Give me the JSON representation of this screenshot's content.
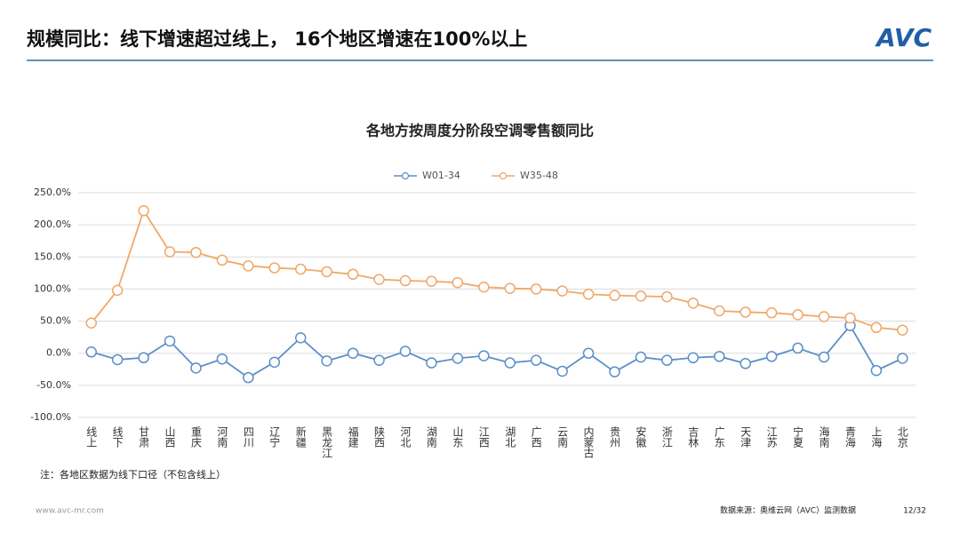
{
  "header": {
    "title": "规模同比：线下增速超过线上， 16个地区增速在100%以上",
    "logo": "AVC"
  },
  "chart_data": {
    "type": "line",
    "title": "各地方按周度分阶段空调零售额同比",
    "categories": [
      "线上",
      "线下",
      "甘肃",
      "山西",
      "重庆",
      "河南",
      "四川",
      "辽宁",
      "新疆",
      "黑龙江",
      "福建",
      "陕西",
      "河北",
      "湖南",
      "山东",
      "江西",
      "湖北",
      "广西",
      "云南",
      "内蒙古",
      "贵州",
      "安徽",
      "浙江",
      "吉林",
      "广东",
      "天津",
      "江苏",
      "宁夏",
      "海南",
      "青海",
      "上海",
      "北京"
    ],
    "series": [
      {
        "name": "W01-34",
        "color": "#5b8fc9",
        "values": [
          2,
          -10,
          -7,
          19,
          -23,
          -9,
          -38,
          -14,
          24,
          -12,
          0,
          -11,
          3,
          -15,
          -8,
          -4,
          -15,
          -11,
          -28,
          0,
          -29,
          -6,
          -11,
          -7,
          -5,
          -16,
          -5,
          8,
          -6,
          43,
          -27,
          -8
        ]
      },
      {
        "name": "W35-48",
        "color": "#f0a868",
        "values": [
          47,
          98,
          222,
          158,
          157,
          145,
          136,
          133,
          131,
          127,
          123,
          115,
          113,
          112,
          110,
          103,
          101,
          100,
          97,
          92,
          90,
          89,
          88,
          78,
          66,
          64,
          63,
          60,
          57,
          55,
          40,
          36
        ]
      }
    ],
    "ylim": [
      -100,
      250
    ],
    "yticks": [
      {
        "value": -100,
        "label": "-100.0%"
      },
      {
        "value": -50,
        "label": "-50.0%"
      },
      {
        "value": 0,
        "label": "0.0%"
      },
      {
        "value": 50,
        "label": "50.0%"
      },
      {
        "value": 100,
        "label": "100.0%"
      },
      {
        "value": 150,
        "label": "150.0%"
      },
      {
        "value": 200,
        "label": "200.0%"
      },
      {
        "value": 250,
        "label": "250.0%"
      }
    ],
    "grid": true,
    "legend": "top"
  },
  "footer": {
    "note": "注：各地区数据为线下口径（不包含线上）",
    "website": "www.avc-mr.com",
    "source": "数据来源：奥维云网（AVC）监测数据",
    "page": "12/32"
  }
}
